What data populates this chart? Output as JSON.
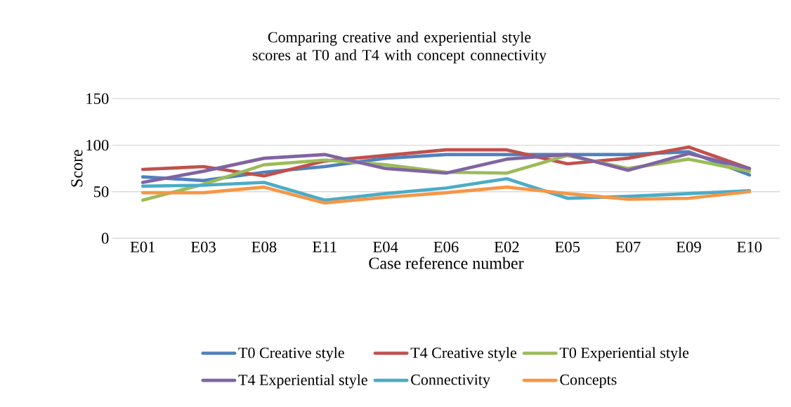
{
  "chart_data": {
    "type": "line",
    "title": "Comparing creative and experiential style scores at T0 and T4 with concept connectivity",
    "xlabel": "Case reference number",
    "ylabel": "Score",
    "categories": [
      "E01",
      "E03",
      "E08",
      "E11",
      "E04",
      "E06",
      "E02",
      "E05",
      "E07",
      "E09",
      "E10"
    ],
    "series": [
      {
        "name": "T0 Creative style",
        "color": "#4f81bd",
        "values": [
          66,
          62,
          71,
          77,
          86,
          90,
          90,
          90,
          90,
          93,
          68
        ]
      },
      {
        "name": "T4 Creative style",
        "color": "#c0504d",
        "values": [
          74,
          77,
          67,
          83,
          89,
          95,
          95,
          80,
          86,
          98,
          75
        ]
      },
      {
        "name": "T0 Experiential style",
        "color": "#9bbb59",
        "values": [
          41,
          58,
          79,
          84,
          79,
          71,
          70,
          89,
          75,
          85,
          72
        ]
      },
      {
        "name": "T4 Experiential style",
        "color": "#8064a2",
        "values": [
          60,
          72,
          86,
          90,
          75,
          70,
          85,
          90,
          73,
          91,
          75
        ]
      },
      {
        "name": "Connectivity",
        "color": "#4bacc6",
        "values": [
          56,
          57,
          60,
          41,
          48,
          54,
          64,
          43,
          45,
          48,
          51
        ]
      },
      {
        "name": "Concepts",
        "color": "#f79646",
        "values": [
          49,
          49,
          55,
          38,
          44,
          49,
          55,
          48,
          42,
          43,
          50
        ]
      }
    ],
    "ylim": [
      0,
      150
    ],
    "yticks": [
      0,
      50,
      100,
      150
    ],
    "grid": "y",
    "legend": "bottom",
    "marker": "none",
    "line_style": "solid"
  }
}
